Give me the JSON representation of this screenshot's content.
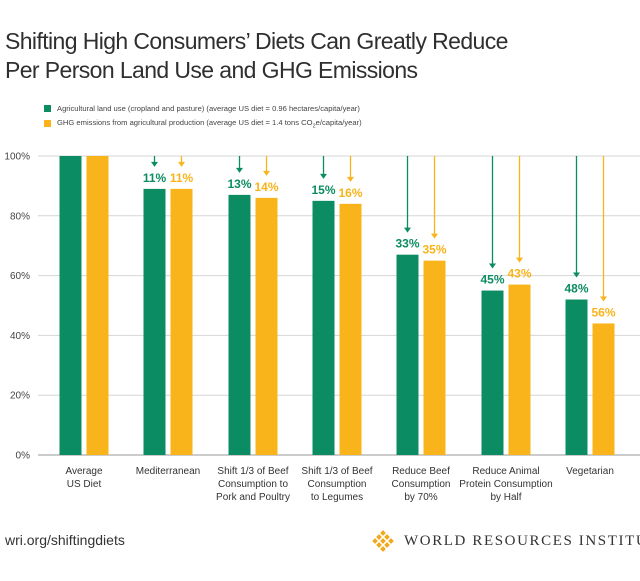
{
  "title": {
    "line1": "Shifting High Consumers’ Diets Can Greatly Reduce",
    "line2": "Per Person Land Use and GHG Emissions"
  },
  "colors": {
    "land": "#0c8c63",
    "ghg": "#f8b41a",
    "grid": "#d6d6d6",
    "text": "#333333"
  },
  "legend": {
    "land": "Agricultural land use (cropland and pasture) (average US diet = 0.96 hectares/capita/year)",
    "ghg_prefix": "GHG emissions from agricultural production (average US diet = 1.4 tons CO",
    "ghg_sub": "2",
    "ghg_suffix": "e/capita/year)"
  },
  "footer": {
    "url": "wri.org/shiftingdiets",
    "org": "WORLD RESOURCES INSTITUTE"
  },
  "chart_data": {
    "type": "bar",
    "ylim": [
      0,
      100
    ],
    "yticks": [
      "0%",
      "20%",
      "40%",
      "60%",
      "80%",
      "100%"
    ],
    "categories": [
      [
        "Average",
        "US Diet"
      ],
      [
        "Mediterranean"
      ],
      [
        "Shift 1/3 of Beef",
        "Consumption to",
        "Pork and Poultry"
      ],
      [
        "Shift 1/3 of Beef",
        "Consumption",
        "to Legumes"
      ],
      [
        "Reduce Beef",
        "Consumption",
        "by 70%"
      ],
      [
        "Reduce Animal",
        "Protein Consumption",
        "by Half"
      ],
      [
        "Vegetarian"
      ]
    ],
    "series": [
      {
        "name": "Agricultural land use",
        "key": "land",
        "values": [
          100,
          89,
          87,
          85,
          67,
          55,
          52
        ],
        "labels": [
          "",
          "11%",
          "13%",
          "15%",
          "33%",
          "45%",
          "48%"
        ]
      },
      {
        "name": "GHG emissions",
        "key": "ghg",
        "values": [
          100,
          89,
          86,
          84,
          65,
          57,
          44
        ],
        "labels": [
          "",
          "11%",
          "14%",
          "16%",
          "35%",
          "43%",
          "56%"
        ]
      }
    ]
  }
}
